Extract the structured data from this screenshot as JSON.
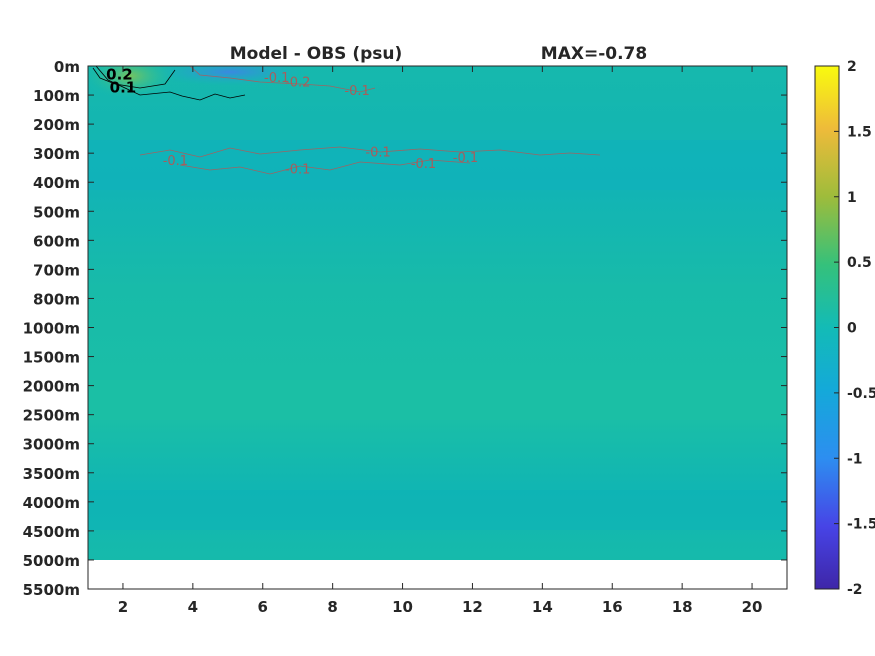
{
  "chart_data": {
    "type": "heatmap",
    "title": "Model - OBS (psu)",
    "subtitle": "MAX=-0.78",
    "xlabel": "",
    "ylabel": "",
    "x_ticks": [
      2,
      4,
      6,
      8,
      10,
      12,
      14,
      16,
      18,
      20
    ],
    "xlim": [
      1,
      21
    ],
    "y_ticks": [
      "0m",
      "100m",
      "200m",
      "300m",
      "400m",
      "500m",
      "600m",
      "700m",
      "800m",
      "1000m",
      "1500m",
      "2000m",
      "2500m",
      "3000m",
      "3500m",
      "4000m",
      "4500m",
      "5000m",
      "5500m"
    ],
    "data_extent_depth": "5000m",
    "colorbar": {
      "ticks": [
        "2",
        "1.5",
        "1",
        "0.5",
        "0",
        "-0.5",
        "-1",
        "-1.5",
        "-2"
      ],
      "range": [
        -2,
        2
      ],
      "colormap": "parula"
    },
    "contour_labels": [
      {
        "text": "0.2",
        "x": 1.9,
        "depth_level": 0.25,
        "color": "#000000"
      },
      {
        "text": "0.1",
        "x": 2.0,
        "depth_level": 0.7,
        "color": "#000000"
      },
      {
        "text": "-0.1",
        "x": 6.4,
        "depth_level": 0.35,
        "color": "#c0504d"
      },
      {
        "text": "-0.2",
        "x": 7.0,
        "depth_level": 0.5,
        "color": "#c0504d"
      },
      {
        "text": "-0.1",
        "x": 8.7,
        "depth_level": 0.8,
        "color": "#c0504d"
      },
      {
        "text": "-0.1",
        "x": 3.5,
        "depth_level": 3.2,
        "color": "#c0504d"
      },
      {
        "text": "-0.1",
        "x": 7.0,
        "depth_level": 3.5,
        "color": "#c0504d"
      },
      {
        "text": "-0.1",
        "x": 9.3,
        "depth_level": 2.9,
        "color": "#c0504d"
      },
      {
        "text": "-0.1",
        "x": 10.6,
        "depth_level": 3.3,
        "color": "#c0504d"
      },
      {
        "text": "-0.1",
        "x": 11.8,
        "depth_level": 3.1,
        "color": "#c0504d"
      }
    ],
    "colors": {
      "field_base": "#17bba8",
      "field_light": "#1dc1a2",
      "field_dark": "#0bb3b9",
      "negative_core": "#3a8be0",
      "positive_core": "#5cc37a",
      "contour_negative": "#c0504d",
      "contour_positive": "#000000"
    }
  }
}
